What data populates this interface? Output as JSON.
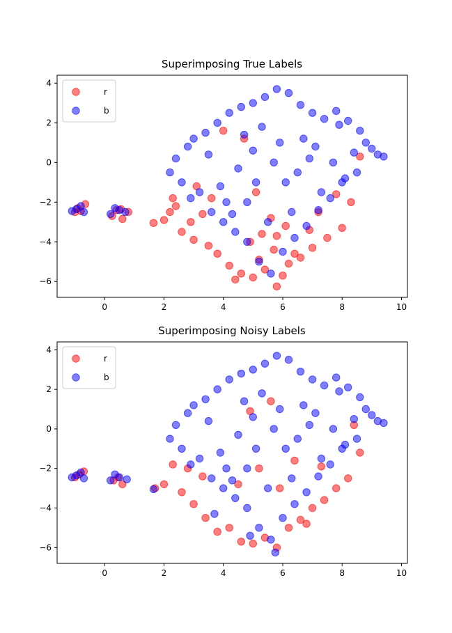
{
  "chart_data": [
    {
      "type": "scatter",
      "title": "Superimposing True Labels",
      "xlim": [
        -1.6,
        10.2
      ],
      "ylim": [
        -6.8,
        4.4
      ],
      "xticks": [
        0,
        2,
        4,
        6,
        8,
        10
      ],
      "yticks": [
        4,
        2,
        0,
        -2,
        -4,
        -6
      ],
      "grid": false,
      "legend": {
        "loc": "upper-left"
      },
      "series": [
        {
          "name": "r",
          "color": "#ff0000",
          "alpha": 0.5,
          "x": [
            -1.0,
            -0.9,
            -0.65,
            -0.8,
            0.25,
            0.4,
            0.6,
            0.8,
            0.55,
            1.65,
            2.0,
            2.2,
            2.6,
            3.0,
            3.5,
            3.8,
            4.2,
            4.6,
            5.0,
            5.4,
            5.8,
            6.2,
            6.6,
            7.0,
            7.5,
            8.0,
            4.4,
            4.9,
            5.3,
            5.7,
            6.1,
            3.3,
            3.6,
            2.9,
            2.4,
            7.2,
            7.8,
            8.3,
            8.6,
            6.9,
            4.0,
            4.7,
            5.1,
            5.6,
            6.0,
            6.4,
            5.2,
            5.8,
            3.1,
            2.3
          ],
          "y": [
            -2.5,
            -2.3,
            -2.1,
            -2.45,
            -2.7,
            -2.4,
            -2.85,
            -2.5,
            -2.35,
            -3.05,
            -2.9,
            -2.5,
            -3.5,
            -3.9,
            -4.2,
            -4.6,
            -5.2,
            -5.6,
            -5.8,
            -5.4,
            -6.25,
            -5.1,
            -4.8,
            -4.3,
            -3.8,
            -3.3,
            -5.9,
            -4.0,
            -3.6,
            -4.4,
            -3.2,
            -2.6,
            -1.8,
            -3.0,
            -2.2,
            -2.5,
            -1.6,
            -2.0,
            0.3,
            -3.4,
            1.6,
            1.2,
            -1.5,
            -2.8,
            -5.7,
            -4.6,
            -4.9,
            -3.7,
            -1.2,
            -1.8
          ]
        },
        {
          "name": "b",
          "color": "#0000ff",
          "alpha": 0.5,
          "x": [
            -1.1,
            -0.95,
            -0.8,
            -0.7,
            0.2,
            0.35,
            0.5,
            0.7,
            2.2,
            2.4,
            2.6,
            2.8,
            3.0,
            3.2,
            3.4,
            3.6,
            3.8,
            4.0,
            4.2,
            4.4,
            4.6,
            4.8,
            5.0,
            5.2,
            5.4,
            5.6,
            5.8,
            6.0,
            6.2,
            6.4,
            6.6,
            6.8,
            7.0,
            7.2,
            7.4,
            7.6,
            7.8,
            8.0,
            8.2,
            8.4,
            8.6,
            8.8,
            9.0,
            9.2,
            9.4,
            5.7,
            5.9,
            6.1,
            4.8,
            5.3,
            6.5,
            7.1,
            3.9,
            4.5,
            5.0,
            6.3,
            7.7,
            8.5,
            2.9,
            3.5,
            4.1,
            4.7,
            5.5,
            6.7,
            7.3,
            7.9,
            8.1,
            5.1,
            6.9,
            4.3
          ],
          "y": [
            -2.45,
            -2.35,
            -2.2,
            -2.5,
            -2.6,
            -2.3,
            -2.4,
            -2.5,
            -0.5,
            0.2,
            -1.0,
            0.8,
            1.2,
            -1.5,
            1.5,
            -2.5,
            2.0,
            -3.0,
            2.5,
            -3.5,
            2.8,
            -4.0,
            3.0,
            -5.0,
            3.3,
            -5.6,
            3.7,
            -4.5,
            3.5,
            -3.8,
            2.9,
            -3.2,
            2.5,
            -2.4,
            2.2,
            -1.8,
            2.6,
            -1.0,
            2.1,
            0.5,
            1.6,
            1.0,
            0.7,
            0.4,
            0.3,
            0.0,
            1.0,
            -1.0,
            -2.0,
            1.8,
            -0.5,
            0.8,
            -1.2,
            -0.3,
            0.6,
            -2.5,
            0.0,
            -0.5,
            -1.8,
            0.4,
            -2.0,
            1.4,
            -3.0,
            1.2,
            -1.5,
            1.9,
            -0.8,
            -1.0,
            0.2,
            -2.6
          ]
        }
      ]
    },
    {
      "type": "scatter",
      "title": "Superimposing Noisy Labels",
      "xlim": [
        -1.6,
        10.2
      ],
      "ylim": [
        -6.8,
        4.4
      ],
      "xticks": [
        0,
        2,
        4,
        6,
        8,
        10
      ],
      "yticks": [
        4,
        2,
        0,
        -2,
        -4,
        -6
      ],
      "grid": false,
      "legend": {
        "loc": "upper-left"
      },
      "series": [
        {
          "name": "r",
          "color": "#ff0000",
          "alpha": 0.5,
          "x": [
            -1.0,
            -0.85,
            -0.7,
            0.3,
            0.45,
            0.6,
            1.7,
            2.0,
            2.3,
            2.6,
            3.0,
            3.4,
            3.8,
            4.2,
            4.6,
            5.0,
            5.4,
            5.8,
            6.2,
            6.6,
            7.0,
            7.4,
            7.8,
            8.2,
            8.6,
            4.5,
            5.2,
            5.9,
            6.4,
            3.3,
            2.8,
            7.3,
            8.4,
            4.9,
            5.6,
            6.8
          ],
          "y": [
            -2.45,
            -2.3,
            -2.15,
            -2.6,
            -2.45,
            -2.8,
            -3.0,
            -2.8,
            -1.8,
            -3.2,
            -3.8,
            -4.5,
            -5.2,
            -5.0,
            -5.7,
            -5.8,
            -5.5,
            -6.0,
            -5.0,
            -4.6,
            -4.0,
            -3.6,
            -3.0,
            -2.5,
            -1.2,
            -2.8,
            -2.0,
            -3.0,
            -1.6,
            -2.4,
            -2.0,
            -1.9,
            0.2,
            0.9,
            1.4,
            -4.8
          ]
        },
        {
          "name": "b",
          "color": "#0000ff",
          "alpha": 0.5,
          "x": [
            -1.1,
            -0.95,
            -0.8,
            -0.7,
            0.2,
            0.35,
            0.5,
            0.75,
            1.65,
            2.2,
            2.4,
            2.6,
            2.8,
            3.0,
            3.2,
            3.4,
            3.6,
            3.8,
            4.0,
            4.2,
            4.4,
            4.6,
            4.8,
            5.0,
            5.2,
            5.4,
            5.6,
            5.8,
            6.0,
            6.2,
            6.4,
            6.6,
            6.8,
            7.0,
            7.2,
            7.4,
            7.6,
            7.8,
            8.0,
            8.2,
            8.4,
            8.6,
            8.8,
            9.0,
            9.2,
            9.4,
            5.7,
            5.9,
            6.1,
            4.8,
            5.3,
            6.5,
            7.1,
            3.9,
            4.5,
            5.0,
            6.3,
            7.7,
            8.5,
            2.9,
            3.5,
            4.1,
            4.7,
            5.5,
            6.7,
            7.3,
            7.9,
            8.1,
            5.1,
            6.9,
            4.3,
            5.75,
            3.7,
            4.9
          ],
          "y": [
            -2.45,
            -2.35,
            -2.2,
            -2.5,
            -2.6,
            -2.3,
            -2.45,
            -2.55,
            -3.05,
            -0.5,
            0.2,
            -1.0,
            0.8,
            1.2,
            -1.5,
            1.5,
            -2.5,
            2.0,
            -3.0,
            2.5,
            -3.5,
            2.8,
            -4.0,
            3.0,
            -5.0,
            3.3,
            -5.6,
            3.7,
            -4.5,
            3.5,
            -3.8,
            2.9,
            -3.2,
            2.5,
            -2.4,
            2.2,
            -1.8,
            2.6,
            -1.0,
            2.1,
            0.5,
            1.6,
            1.0,
            0.7,
            0.4,
            0.3,
            0.0,
            1.0,
            -1.0,
            -2.0,
            1.8,
            -0.5,
            0.8,
            -1.2,
            -0.3,
            0.6,
            -2.5,
            0.0,
            -0.5,
            -1.8,
            0.4,
            -2.0,
            1.4,
            -3.0,
            1.2,
            -1.5,
            1.9,
            -0.8,
            -1.0,
            0.2,
            -2.6,
            -6.25,
            -4.3,
            -5.4
          ]
        }
      ]
    }
  ]
}
